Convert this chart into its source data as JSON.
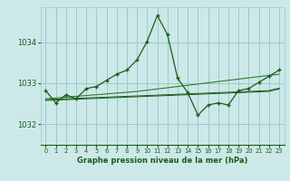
{
  "title": "Graphe pression niveau de la mer (hPa)",
  "bg_color": "#cce8e8",
  "grid_color": "#99cccc",
  "line_color_dark": "#1a5c1a",
  "line_color_mid": "#2d7a2d",
  "xlim": [
    -0.5,
    23.5
  ],
  "ylim": [
    1031.5,
    1034.85
  ],
  "yticks": [
    1032,
    1033,
    1034
  ],
  "xticks": [
    0,
    1,
    2,
    3,
    4,
    5,
    6,
    7,
    8,
    9,
    10,
    11,
    12,
    13,
    14,
    15,
    16,
    17,
    18,
    19,
    20,
    21,
    22,
    23
  ],
  "series_main": [
    1032.82,
    1032.52,
    1032.72,
    1032.62,
    1032.87,
    1032.92,
    1033.07,
    1033.22,
    1033.32,
    1033.57,
    1034.02,
    1034.65,
    1034.18,
    1033.12,
    1032.77,
    1032.22,
    1032.47,
    1032.52,
    1032.47,
    1032.82,
    1032.87,
    1033.02,
    1033.17,
    1033.32
  ],
  "series_smooth": [
    1032.62,
    1032.64,
    1032.66,
    1032.68,
    1032.7,
    1032.72,
    1032.74,
    1032.76,
    1032.78,
    1032.8,
    1032.83,
    1032.86,
    1032.89,
    1032.92,
    1032.95,
    1032.98,
    1033.01,
    1033.04,
    1033.07,
    1033.1,
    1033.13,
    1033.16,
    1033.19,
    1033.22
  ],
  "series_trend1": [
    1032.6,
    1032.61,
    1032.62,
    1032.63,
    1032.64,
    1032.65,
    1032.66,
    1032.67,
    1032.68,
    1032.69,
    1032.7,
    1032.71,
    1032.72,
    1032.73,
    1032.74,
    1032.75,
    1032.76,
    1032.77,
    1032.78,
    1032.79,
    1032.8,
    1032.81,
    1032.82,
    1032.88
  ],
  "series_trend2": [
    1032.58,
    1032.59,
    1032.6,
    1032.61,
    1032.62,
    1032.63,
    1032.64,
    1032.65,
    1032.66,
    1032.67,
    1032.68,
    1032.69,
    1032.7,
    1032.71,
    1032.72,
    1032.73,
    1032.74,
    1032.75,
    1032.76,
    1032.77,
    1032.78,
    1032.79,
    1032.8,
    1032.86
  ]
}
